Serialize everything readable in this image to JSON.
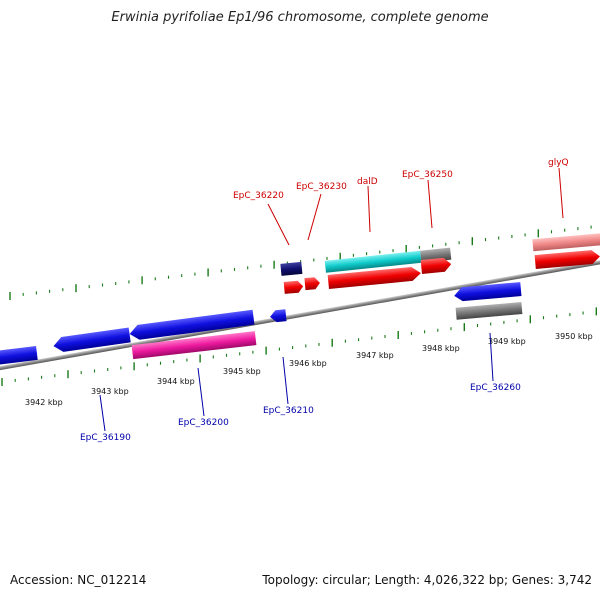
{
  "title": "Erwinia pyrifoliae Ep1/96 chromosome, complete genome",
  "footer": {
    "accession": "Accession: NC_012214",
    "summary": "Topology: circular; Length: 4,026,322 bp; Genes: 3,742"
  },
  "colors": {
    "forward_label": "#cc0000",
    "reverse_label": "#0000aa",
    "tick": "#1a7a1a",
    "backbone": "#8a8a8a"
  },
  "kbp_labels": [
    "3942 kbp",
    "3943 kbp",
    "3944 kbp",
    "3945 kbp",
    "3946 kbp",
    "3947 kbp",
    "3948 kbp",
    "3949 kbp",
    "3950 kbp"
  ],
  "gene_labels": {
    "forward": [
      "EpC_36220",
      "EpC_36230",
      "dalD",
      "EpC_36250",
      "glyQ"
    ],
    "reverse": [
      "EpC_36190",
      "EpC_36200",
      "EpC_36210",
      "EpC_36260"
    ]
  }
}
